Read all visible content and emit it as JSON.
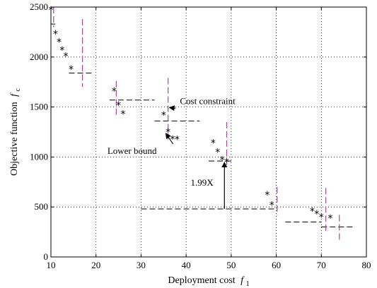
{
  "chart_data": {
    "type": "scatter",
    "title": "",
    "xlabel": "Deployment cost",
    "xlabel_sub": "1",
    "xlabel_var": "f",
    "ylabel": "Objective function",
    "ylabel_sub": "c",
    "ylabel_var": "f",
    "xlim": [
      10,
      80
    ],
    "ylim": [
      0,
      2500
    ],
    "xticks": [
      10,
      20,
      30,
      40,
      50,
      60,
      70,
      80
    ],
    "yticks": [
      0,
      500,
      1000,
      1500,
      2000,
      2500
    ],
    "grid": true,
    "marker": "*",
    "points": [
      {
        "x": 10,
        "y": 2470
      },
      {
        "x": 11,
        "y": 2230
      },
      {
        "x": 11.8,
        "y": 2150
      },
      {
        "x": 12.5,
        "y": 2070
      },
      {
        "x": 13.3,
        "y": 2010
      },
      {
        "x": 14.5,
        "y": 1880
      },
      {
        "x": 24,
        "y": 1660
      },
      {
        "x": 25,
        "y": 1520
      },
      {
        "x": 26,
        "y": 1430
      },
      {
        "x": 35,
        "y": 1420
      },
      {
        "x": 36,
        "y": 1250
      },
      {
        "x": 37,
        "y": 1180
      },
      {
        "x": 38,
        "y": 1175
      },
      {
        "x": 46,
        "y": 1140
      },
      {
        "x": 47,
        "y": 1050
      },
      {
        "x": 48,
        "y": 970
      },
      {
        "x": 49,
        "y": 950
      },
      {
        "x": 58,
        "y": 620
      },
      {
        "x": 59,
        "y": 520
      },
      {
        "x": 68,
        "y": 460
      },
      {
        "x": 69,
        "y": 430
      },
      {
        "x": 70,
        "y": 400
      },
      {
        "x": 72,
        "y": 390
      }
    ],
    "lower_bound_segments": [
      {
        "x1": 10,
        "x2": 11,
        "y": 2330
      },
      {
        "x1": 14,
        "x2": 19,
        "y": 1840
      },
      {
        "x1": 23,
        "x2": 33,
        "y": 1570
      },
      {
        "x1": 33,
        "x2": 43,
        "y": 1360
      },
      {
        "x1": 45,
        "x2": 50,
        "y": 960
      },
      {
        "x1": 30,
        "x2": 60,
        "y": 480
      },
      {
        "x1": 62,
        "x2": 70,
        "y": 350
      },
      {
        "x1": 70,
        "x2": 77,
        "y": 300
      }
    ],
    "cost_constraint_lines": [
      {
        "x": 10.6,
        "y1": 2500,
        "y2": 2300
      },
      {
        "x": 17,
        "y1": 2380,
        "y2": 1700
      },
      {
        "x": 24.5,
        "y1": 1760,
        "y2": 1420
      },
      {
        "x": 36,
        "y1": 1790,
        "y2": 1160
      },
      {
        "x": 49,
        "y1": 1350,
        "y2": 900
      },
      {
        "x": 60.2,
        "y1": 700,
        "y2": 420
      },
      {
        "x": 71,
        "y1": 690,
        "y2": 250
      },
      {
        "x": 74,
        "y1": 420,
        "y2": 170
      }
    ],
    "annotations": [
      {
        "id": "cost-constraint",
        "text": "Cost constraint",
        "text_x": 38,
        "text_y": 1530,
        "arrow_to_x": 36,
        "arrow_to_y": 1480
      },
      {
        "id": "lower-bound",
        "text": "Lower bound",
        "text_x": 28,
        "text_y": 1060,
        "arrow_to_x": 35.5,
        "arrow_to_y": 1250
      },
      {
        "id": "ratio",
        "text": "1.99X",
        "text_x": 41,
        "text_y": 750,
        "arrow_from_x": 48.5,
        "arrow_from_y": 480,
        "arrow_to_x": 48.5,
        "arrow_to_y": 960
      }
    ]
  }
}
